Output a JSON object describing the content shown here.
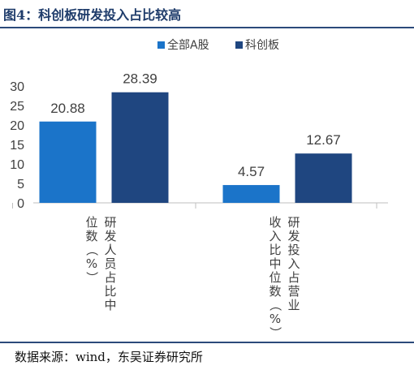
{
  "figure": {
    "title": "图4：科创板研发投入占比较高",
    "source": "数据来源：wind，东吴证券研究所"
  },
  "chart_data": {
    "type": "bar",
    "categories": [
      "研发人员占比中位数（%）",
      "研发投入占营业收入比中位数（%）"
    ],
    "category_label_lines": [
      [
        "研发人员占比中",
        "位数（%）"
      ],
      [
        "研发投入占营业",
        "收入比中位数（%）"
      ]
    ],
    "series": [
      {
        "name": "全部A股",
        "values": [
          20.88,
          4.57
        ],
        "color": "#1b74c9"
      },
      {
        "name": "科创板",
        "values": [
          28.39,
          12.67
        ],
        "color": "#1f4680"
      }
    ],
    "data_labels": [
      [
        "20.88",
        "4.57"
      ],
      [
        "28.39",
        "12.67"
      ]
    ],
    "yticks": [
      "0",
      "5",
      "10",
      "15",
      "20",
      "25",
      "30"
    ],
    "ylim": [
      0,
      30
    ],
    "legend_position": "top",
    "grid": false
  }
}
